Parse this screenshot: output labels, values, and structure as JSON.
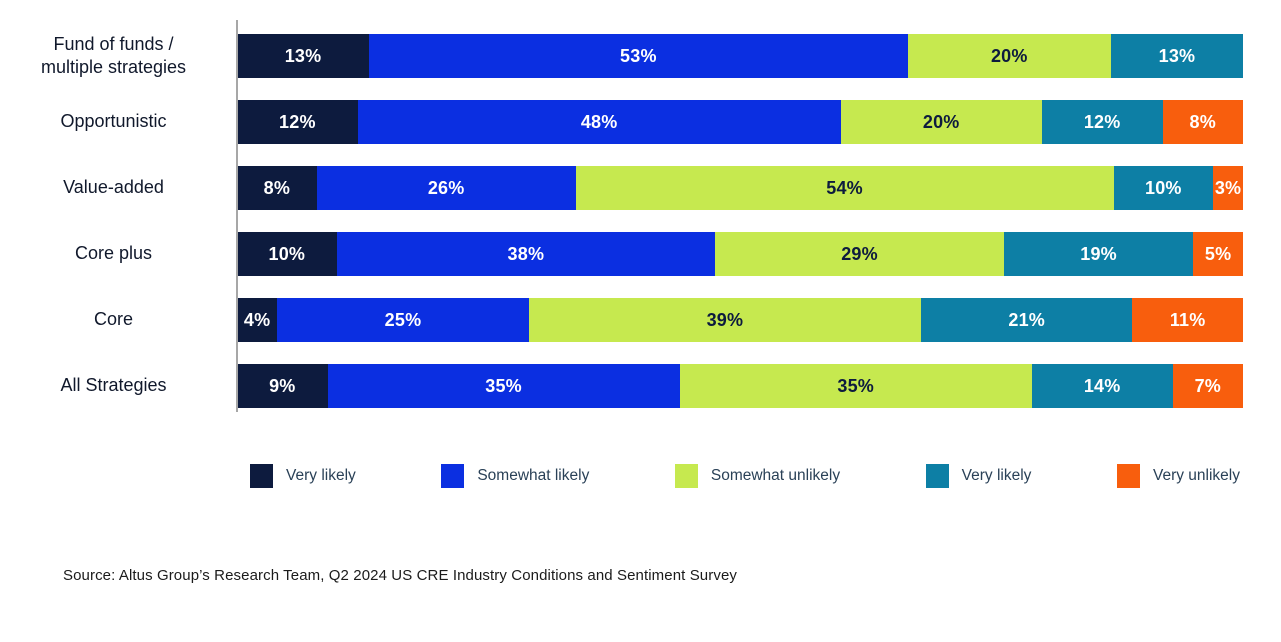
{
  "chart_data": {
    "type": "bar",
    "orientation": "horizontal",
    "stacked": true,
    "normalized_each_row_to_full_width": true,
    "title": "",
    "xlabel": "",
    "ylabel": "",
    "value_suffix": "%",
    "legend_position": "bottom",
    "categories": [
      "Fund of funds /\nmultiple strategies",
      "Opportunistic",
      "Value-added",
      "Core plus",
      "Core",
      "All Strategies"
    ],
    "series": [
      {
        "name": "Very likely",
        "color": "#0d1b3e",
        "label_color": "#ffffff",
        "values": [
          13,
          12,
          8,
          10,
          4,
          9
        ]
      },
      {
        "name": "Somewhat likely",
        "color": "#0b2fe1",
        "label_color": "#ffffff",
        "values": [
          53,
          48,
          26,
          38,
          25,
          35
        ]
      },
      {
        "name": "Somewhat unlikely",
        "color": "#c6e94f",
        "label_color": "#0d1b3e",
        "values": [
          20,
          20,
          54,
          29,
          39,
          35
        ]
      },
      {
        "name": "Very likely",
        "color": "#0d7fa5",
        "label_color": "#ffffff",
        "values": [
          13,
          12,
          10,
          19,
          21,
          14
        ]
      },
      {
        "name": "Very unlikely",
        "color": "#f85e0d",
        "label_color": "#ffffff",
        "values": [
          0,
          8,
          3,
          5,
          11,
          7
        ]
      }
    ],
    "axis_line_color": "#a7a7a7"
  },
  "source": {
    "text": "Source: Altus Group’s Research Team, Q2 2024 US CRE Industry Conditions and Sentiment Survey"
  }
}
